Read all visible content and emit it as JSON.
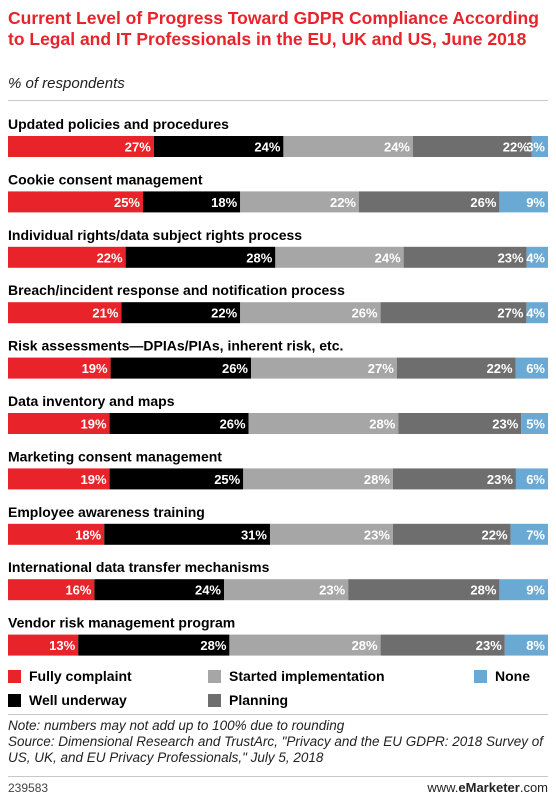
{
  "title": "Current Level of Progress Toward GDPR Compliance According to Legal and IT Professionals in the EU, UK and US, June 2018",
  "subtitle": "% of respondents",
  "colors": {
    "fully": "#e8232a",
    "well": "#000000",
    "started": "#a6a6a6",
    "planning": "#6e6e6e",
    "none": "#6aa9d3"
  },
  "chart_data": {
    "type": "bar",
    "orientation": "horizontal",
    "stacked": true,
    "categories": [
      "Updated policies and procedures",
      "Cookie consent management",
      "Individual rights/data subject rights process",
      "Breach/incident response and notification process",
      "Risk assessments—DPIAs/PIAs, inherent risk, etc.",
      "Data inventory and maps",
      "Marketing consent management",
      "Employee awareness training",
      "International data transfer mechanisms",
      "Vendor risk management program"
    ],
    "series": [
      {
        "name": "Fully complaint",
        "key": "fully",
        "values": [
          27,
          25,
          22,
          21,
          19,
          19,
          19,
          18,
          16,
          13
        ]
      },
      {
        "name": "Well underway",
        "key": "well",
        "values": [
          24,
          18,
          28,
          22,
          26,
          26,
          25,
          31,
          24,
          28
        ]
      },
      {
        "name": "Started implementation",
        "key": "started",
        "values": [
          24,
          22,
          24,
          26,
          27,
          28,
          28,
          23,
          23,
          28
        ]
      },
      {
        "name": "Planning",
        "key": "planning",
        "values": [
          22,
          26,
          23,
          27,
          22,
          23,
          23,
          22,
          28,
          23
        ]
      },
      {
        "name": "None",
        "key": "none",
        "values": [
          3,
          9,
          4,
          4,
          6,
          5,
          6,
          7,
          9,
          8
        ]
      }
    ],
    "unit": "%",
    "legend_position": "bottom"
  },
  "legend": {
    "fully": "Fully complaint",
    "well": "Well underway",
    "started": "Started implementation",
    "planning": "Planning",
    "none": "None"
  },
  "note": "Note: numbers may not add up to 100% due to rounding",
  "source": "Source: Dimensional Research and TrustArc, \"Privacy and the EU GDPR: 2018 Survey of US, UK, and EU Privacy Professionals,\" July 5, 2018",
  "footer": {
    "chart_id": "239583",
    "site_prefix": "www.",
    "site_brand": "eMarketer",
    "site_suffix": ".com"
  }
}
